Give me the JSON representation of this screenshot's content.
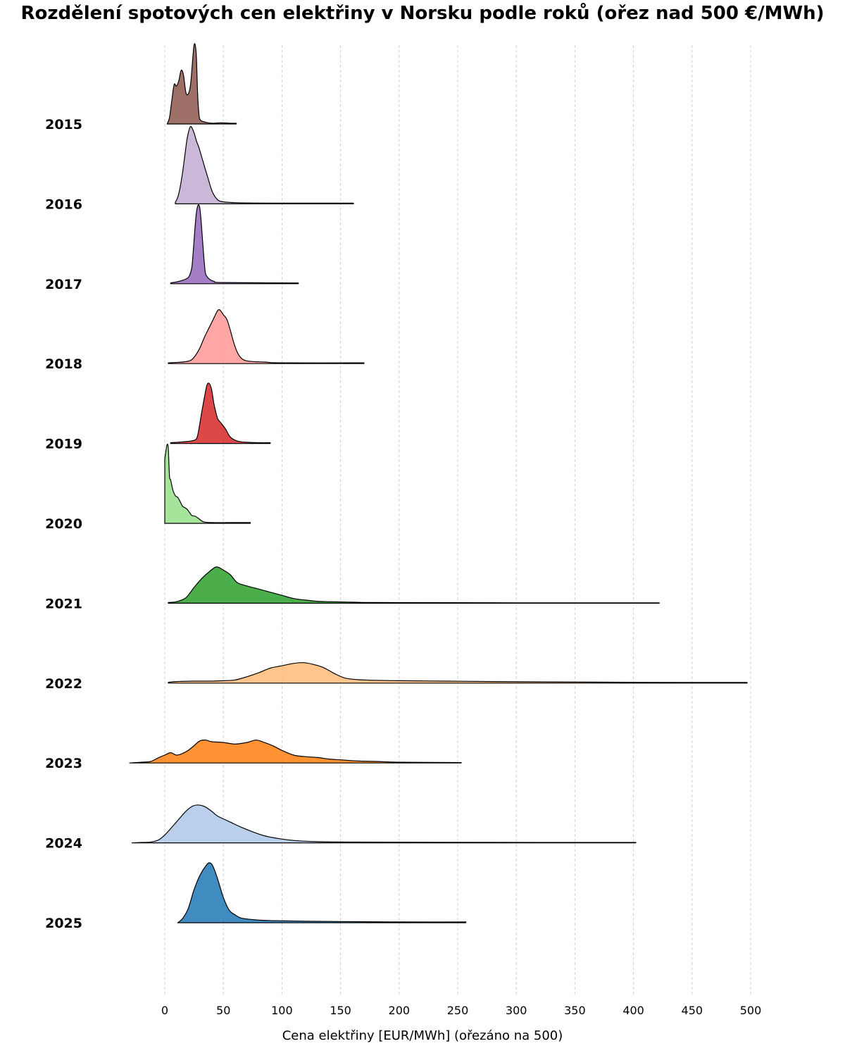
{
  "chart_data": {
    "type": "area",
    "title": "Rozdělení spotových cen elektřiny v Norsku podle roků (ořez nad 500 €/MWh)",
    "xlabel": "Cena elektřiny [EUR/MWh] (ořezáno na 500)",
    "ylabel": "",
    "xlim": [
      0,
      500
    ],
    "xticks": [
      0,
      50,
      100,
      150,
      200,
      250,
      300,
      350,
      400,
      450,
      500
    ],
    "xtick_labels": [
      "0",
      "50",
      "100",
      "150",
      "200",
      "250",
      "300",
      "350",
      "400",
      "450",
      "500"
    ],
    "grid": "vertical dashed",
    "series": [
      {
        "name": "2015",
        "color": "#8c564b",
        "opacity": 0.85,
        "tail_end": 61,
        "points": [
          [
            2,
            0
          ],
          [
            4,
            0.08
          ],
          [
            6,
            0.3
          ],
          [
            8,
            0.5
          ],
          [
            10,
            0.48
          ],
          [
            12,
            0.55
          ],
          [
            14,
            0.68
          ],
          [
            16,
            0.62
          ],
          [
            18,
            0.4
          ],
          [
            20,
            0.38
          ],
          [
            22,
            0.5
          ],
          [
            24,
            0.85
          ],
          [
            25,
            1.0
          ],
          [
            26,
            1.0
          ],
          [
            27,
            0.85
          ],
          [
            28,
            0.4
          ],
          [
            29,
            0.15
          ],
          [
            30,
            0.06
          ],
          [
            33,
            0.03
          ],
          [
            40,
            0.01
          ],
          [
            48,
            0.015
          ],
          [
            55,
            0.01
          ],
          [
            61,
            0.01
          ]
        ]
      },
      {
        "name": "2016",
        "color": "#c5b0d5",
        "opacity": 0.9,
        "tail_end": 161,
        "points": [
          [
            9,
            0.02
          ],
          [
            11,
            0.08
          ],
          [
            13,
            0.2
          ],
          [
            15,
            0.38
          ],
          [
            17,
            0.6
          ],
          [
            19,
            0.82
          ],
          [
            21,
            0.95
          ],
          [
            22,
            0.98
          ],
          [
            23,
            0.97
          ],
          [
            25,
            0.9
          ],
          [
            27,
            0.8
          ],
          [
            29,
            0.72
          ],
          [
            31,
            0.62
          ],
          [
            33,
            0.52
          ],
          [
            35,
            0.42
          ],
          [
            37,
            0.32
          ],
          [
            39,
            0.22
          ],
          [
            41,
            0.14
          ],
          [
            44,
            0.07
          ],
          [
            48,
            0.03
          ],
          [
            60,
            0.015
          ],
          [
            90,
            0.01
          ],
          [
            161,
            0.01
          ]
        ]
      },
      {
        "name": "2017",
        "color": "#9467bd",
        "opacity": 0.85,
        "tail_end": 114,
        "points": [
          [
            5,
            0.01
          ],
          [
            12,
            0.03
          ],
          [
            18,
            0.06
          ],
          [
            21,
            0.1
          ],
          [
            23,
            0.2
          ],
          [
            24,
            0.35
          ],
          [
            25,
            0.55
          ],
          [
            26,
            0.75
          ],
          [
            27,
            0.9
          ],
          [
            28,
            0.98
          ],
          [
            29,
            1.0
          ],
          [
            30,
            0.95
          ],
          [
            31,
            0.8
          ],
          [
            32,
            0.6
          ],
          [
            33,
            0.4
          ],
          [
            34,
            0.22
          ],
          [
            35,
            0.12
          ],
          [
            38,
            0.06
          ],
          [
            42,
            0.03
          ],
          [
            50,
            0.015
          ],
          [
            114,
            0.01
          ]
        ]
      },
      {
        "name": "2018",
        "color": "#ff9896",
        "opacity": 0.85,
        "tail_end": 170,
        "points": [
          [
            3,
            0.01
          ],
          [
            15,
            0.02
          ],
          [
            22,
            0.04
          ],
          [
            26,
            0.1
          ],
          [
            30,
            0.2
          ],
          [
            34,
            0.34
          ],
          [
            38,
            0.46
          ],
          [
            42,
            0.58
          ],
          [
            45,
            0.67
          ],
          [
            47,
            0.68
          ],
          [
            50,
            0.62
          ],
          [
            53,
            0.56
          ],
          [
            56,
            0.42
          ],
          [
            59,
            0.26
          ],
          [
            62,
            0.14
          ],
          [
            66,
            0.06
          ],
          [
            72,
            0.03
          ],
          [
            85,
            0.02
          ],
          [
            100,
            0.01
          ],
          [
            170,
            0.01
          ]
        ]
      },
      {
        "name": "2019",
        "color": "#d62728",
        "opacity": 0.85,
        "tail_end": 90,
        "points": [
          [
            5,
            0.01
          ],
          [
            15,
            0.02
          ],
          [
            25,
            0.04
          ],
          [
            28,
            0.1
          ],
          [
            31,
            0.35
          ],
          [
            34,
            0.6
          ],
          [
            36,
            0.74
          ],
          [
            38,
            0.76
          ],
          [
            40,
            0.68
          ],
          [
            42,
            0.5
          ],
          [
            45,
            0.32
          ],
          [
            48,
            0.26
          ],
          [
            52,
            0.18
          ],
          [
            56,
            0.08
          ],
          [
            62,
            0.03
          ],
          [
            70,
            0.015
          ],
          [
            80,
            0.01
          ],
          [
            90,
            0.01
          ]
        ]
      },
      {
        "name": "2020",
        "color": "#98df8a",
        "opacity": 0.85,
        "tail_end": 73,
        "points": [
          [
            0,
            0.82
          ],
          [
            1,
            0.92
          ],
          [
            2,
            1.0
          ],
          [
            3,
            0.95
          ],
          [
            4,
            0.6
          ],
          [
            5,
            0.55
          ],
          [
            7,
            0.42
          ],
          [
            9,
            0.35
          ],
          [
            11,
            0.33
          ],
          [
            13,
            0.28
          ],
          [
            15,
            0.22
          ],
          [
            17,
            0.2
          ],
          [
            19,
            0.18
          ],
          [
            21,
            0.14
          ],
          [
            23,
            0.1
          ],
          [
            26,
            0.09
          ],
          [
            29,
            0.06
          ],
          [
            33,
            0.02
          ],
          [
            40,
            0.01
          ],
          [
            55,
            0.01
          ],
          [
            73,
            0.01
          ]
        ]
      },
      {
        "name": "2021",
        "color": "#2ca02c",
        "opacity": 0.85,
        "tail_end": 422,
        "points": [
          [
            3,
            0.01
          ],
          [
            10,
            0.02
          ],
          [
            18,
            0.07
          ],
          [
            25,
            0.2
          ],
          [
            32,
            0.32
          ],
          [
            38,
            0.4
          ],
          [
            44,
            0.46
          ],
          [
            50,
            0.42
          ],
          [
            56,
            0.36
          ],
          [
            62,
            0.26
          ],
          [
            70,
            0.22
          ],
          [
            80,
            0.18
          ],
          [
            90,
            0.14
          ],
          [
            100,
            0.1
          ],
          [
            110,
            0.06
          ],
          [
            120,
            0.04
          ],
          [
            130,
            0.025
          ],
          [
            140,
            0.02
          ],
          [
            155,
            0.015
          ],
          [
            170,
            0.01
          ],
          [
            200,
            0.008
          ],
          [
            300,
            0.005
          ],
          [
            422,
            0.005
          ]
        ]
      },
      {
        "name": "2022",
        "color": "#ffbb78",
        "opacity": 0.85,
        "tail_end": 497,
        "points": [
          [
            3,
            0.01
          ],
          [
            10,
            0.02
          ],
          [
            25,
            0.025
          ],
          [
            40,
            0.025
          ],
          [
            50,
            0.03
          ],
          [
            60,
            0.04
          ],
          [
            70,
            0.08
          ],
          [
            80,
            0.13
          ],
          [
            90,
            0.19
          ],
          [
            100,
            0.22
          ],
          [
            110,
            0.25
          ],
          [
            118,
            0.26
          ],
          [
            126,
            0.24
          ],
          [
            135,
            0.2
          ],
          [
            145,
            0.12
          ],
          [
            155,
            0.06
          ],
          [
            170,
            0.04
          ],
          [
            200,
            0.03
          ],
          [
            240,
            0.025
          ],
          [
            280,
            0.02
          ],
          [
            330,
            0.015
          ],
          [
            400,
            0.01
          ],
          [
            497,
            0.008
          ]
        ]
      },
      {
        "name": "2023",
        "color": "#ff7f0e",
        "opacity": 0.85,
        "tail_end": 253,
        "points": [
          [
            -30,
            0.0
          ],
          [
            -20,
            0.01
          ],
          [
            -12,
            0.02
          ],
          [
            -5,
            0.07
          ],
          [
            0,
            0.1
          ],
          [
            5,
            0.13
          ],
          [
            10,
            0.1
          ],
          [
            15,
            0.12
          ],
          [
            20,
            0.16
          ],
          [
            25,
            0.22
          ],
          [
            30,
            0.28
          ],
          [
            35,
            0.29
          ],
          [
            40,
            0.27
          ],
          [
            50,
            0.26
          ],
          [
            60,
            0.24
          ],
          [
            70,
            0.26
          ],
          [
            78,
            0.29
          ],
          [
            85,
            0.26
          ],
          [
            92,
            0.22
          ],
          [
            100,
            0.16
          ],
          [
            110,
            0.1
          ],
          [
            120,
            0.08
          ],
          [
            130,
            0.07
          ],
          [
            140,
            0.05
          ],
          [
            150,
            0.04
          ],
          [
            165,
            0.025
          ],
          [
            180,
            0.02
          ],
          [
            200,
            0.01
          ],
          [
            253,
            0.005
          ]
        ]
      },
      {
        "name": "2024",
        "color": "#aec7e8",
        "opacity": 0.85,
        "tail_end": 402,
        "points": [
          [
            -28,
            0.0
          ],
          [
            -20,
            0.005
          ],
          [
            -12,
            0.01
          ],
          [
            -5,
            0.04
          ],
          [
            0,
            0.1
          ],
          [
            5,
            0.18
          ],
          [
            12,
            0.3
          ],
          [
            18,
            0.4
          ],
          [
            23,
            0.46
          ],
          [
            28,
            0.48
          ],
          [
            34,
            0.46
          ],
          [
            40,
            0.4
          ],
          [
            45,
            0.34
          ],
          [
            55,
            0.27
          ],
          [
            65,
            0.2
          ],
          [
            75,
            0.14
          ],
          [
            85,
            0.09
          ],
          [
            95,
            0.06
          ],
          [
            110,
            0.03
          ],
          [
            130,
            0.015
          ],
          [
            160,
            0.01
          ],
          [
            250,
            0.006
          ],
          [
            402,
            0.005
          ]
        ]
      },
      {
        "name": "2025",
        "color": "#1f77b4",
        "opacity": 0.85,
        "tail_end": 257,
        "points": [
          [
            11,
            0.0
          ],
          [
            15,
            0.05
          ],
          [
            20,
            0.18
          ],
          [
            25,
            0.42
          ],
          [
            30,
            0.6
          ],
          [
            35,
            0.72
          ],
          [
            38,
            0.76
          ],
          [
            41,
            0.72
          ],
          [
            45,
            0.56
          ],
          [
            50,
            0.32
          ],
          [
            55,
            0.16
          ],
          [
            60,
            0.1
          ],
          [
            65,
            0.06
          ],
          [
            75,
            0.04
          ],
          [
            85,
            0.03
          ],
          [
            100,
            0.025
          ],
          [
            120,
            0.02
          ],
          [
            150,
            0.015
          ],
          [
            200,
            0.01
          ],
          [
            257,
            0.01
          ]
        ]
      }
    ]
  }
}
